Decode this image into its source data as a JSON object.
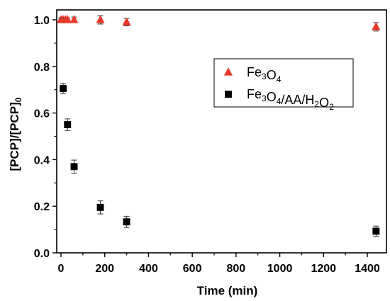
{
  "chart_data": {
    "type": "scatter",
    "title": "",
    "xlabel": "Time (min)",
    "ylabel_parts": {
      "main": "[PCP]/[PCP]",
      "sub": "0"
    },
    "xlim": [
      0,
      1500
    ],
    "ylim": [
      0,
      1.05
    ],
    "xticks": [
      0,
      200,
      400,
      600,
      800,
      1000,
      1200,
      1400
    ],
    "yticks": [
      0.0,
      0.2,
      0.4,
      0.6,
      0.8,
      1.0
    ],
    "ytick_labels": [
      "0.0",
      "0.2",
      "0.4",
      "0.6",
      "0.8",
      "1.0"
    ],
    "grid": false,
    "legend_position": "upper-right",
    "series": [
      {
        "name_parts": [
          {
            "t": "Fe",
            "sub": false
          },
          {
            "t": "3",
            "sub": true
          },
          {
            "t": "O",
            "sub": false
          },
          {
            "t": "4",
            "sub": true
          }
        ],
        "marker": "triangle",
        "color": "#e8392b",
        "x": [
          0,
          10,
          20,
          30,
          60,
          180,
          300,
          1440
        ],
        "y": [
          1.0,
          1.0,
          1.0,
          1.0,
          1.0,
          1.0,
          0.99,
          0.97
        ],
        "err": [
          0.008,
          0.008,
          0.008,
          0.008,
          0.012,
          0.018,
          0.016,
          0.018
        ]
      },
      {
        "name_parts": [
          {
            "t": "Fe",
            "sub": false
          },
          {
            "t": "3",
            "sub": true
          },
          {
            "t": "O",
            "sub": false
          },
          {
            "t": "4",
            "sub": true
          },
          {
            "t": "/AA/H",
            "sub": false
          },
          {
            "t": "2",
            "sub": true
          },
          {
            "t": "O",
            "sub": false
          },
          {
            "t": "2",
            "sub": true
          }
        ],
        "marker": "square",
        "color": "#000000",
        "x": [
          10,
          30,
          60,
          180,
          300,
          1440
        ],
        "y": [
          0.705,
          0.55,
          0.37,
          0.195,
          0.133,
          0.093
        ],
        "err": [
          0.022,
          0.025,
          0.028,
          0.028,
          0.024,
          0.022
        ]
      }
    ]
  }
}
